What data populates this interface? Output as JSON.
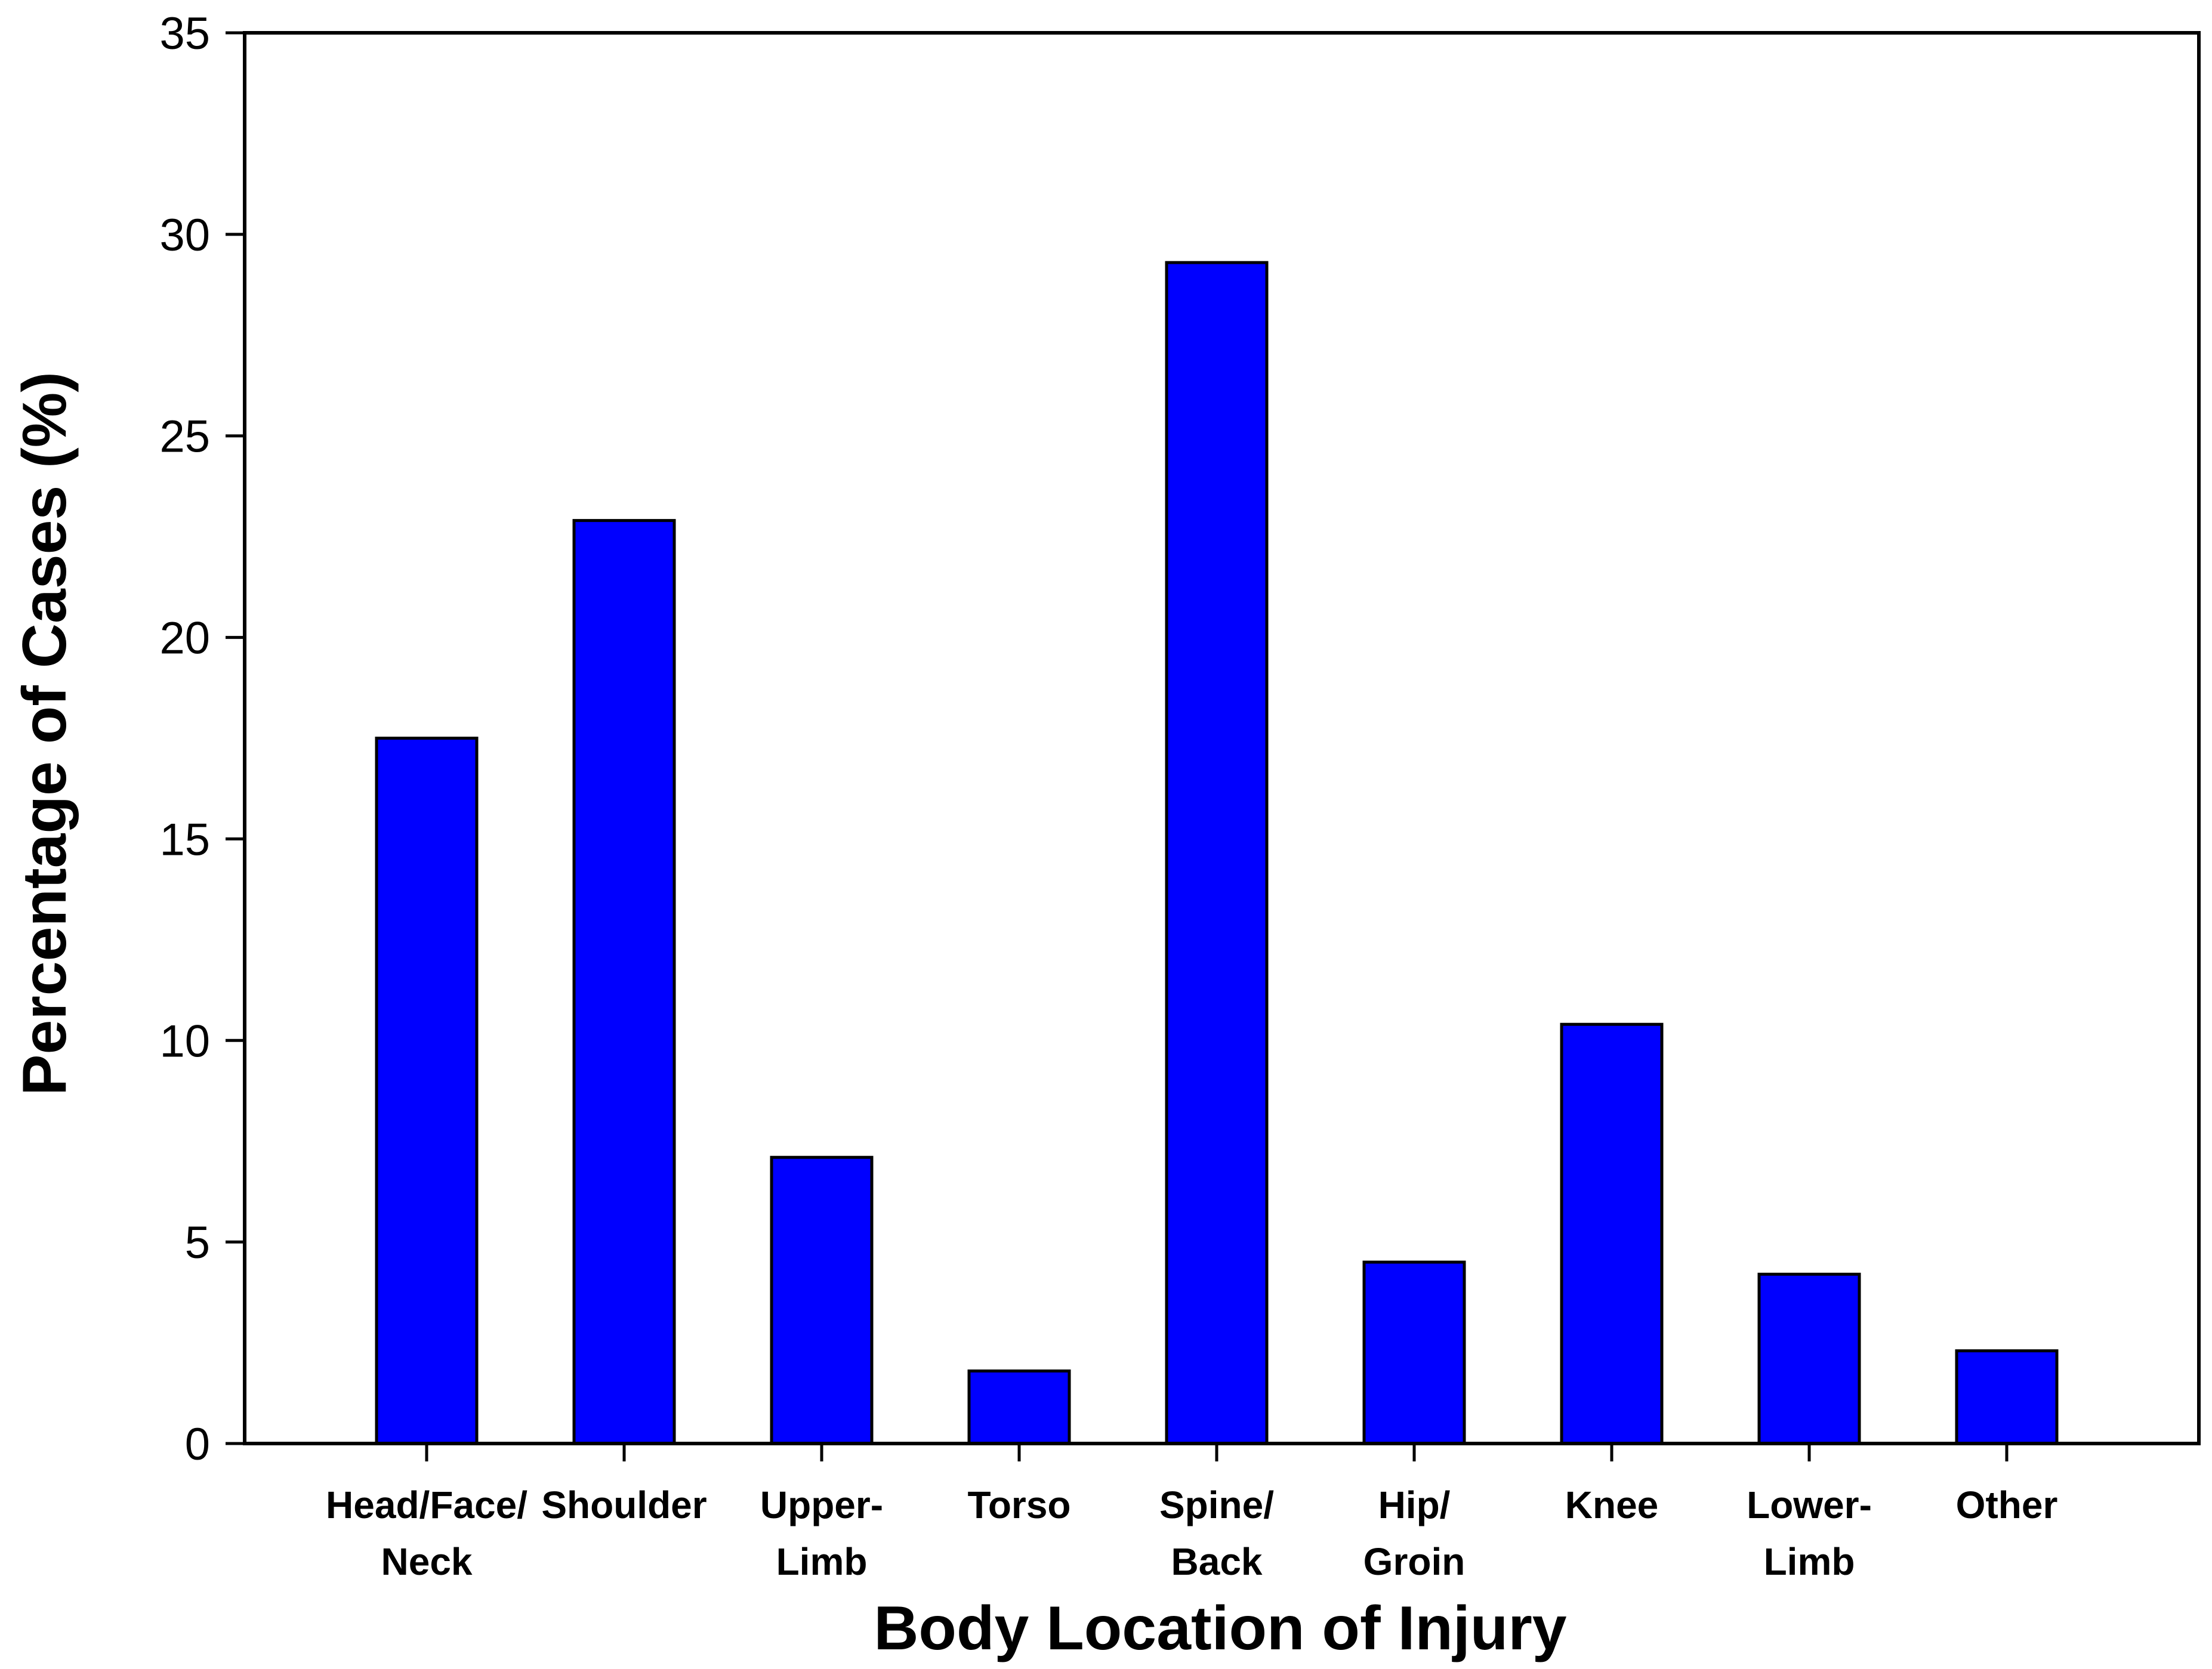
{
  "chart_data": {
    "type": "bar",
    "title": "",
    "xlabel": "Body Location of Injury",
    "ylabel": "Percentage of Cases (%)",
    "ylim": [
      0,
      35
    ],
    "yticks": [
      0,
      5,
      10,
      15,
      20,
      25,
      30,
      35
    ],
    "grid": false,
    "legend": "none",
    "categories": [
      [
        "Head/Face/",
        "Neck"
      ],
      [
        "Shoulder"
      ],
      [
        "Upper-",
        "Limb"
      ],
      [
        "Torso"
      ],
      [
        "Spine/",
        "Back"
      ],
      [
        "Hip/",
        "Groin"
      ],
      [
        "Knee"
      ],
      [
        "Lower-",
        "Limb"
      ],
      [
        "Other"
      ]
    ],
    "values": [
      17.5,
      22.9,
      7.1,
      1.8,
      29.3,
      4.5,
      10.4,
      4.2,
      2.3
    ],
    "bar_color": "#0000FF",
    "bar_edge_color": "#000000"
  }
}
